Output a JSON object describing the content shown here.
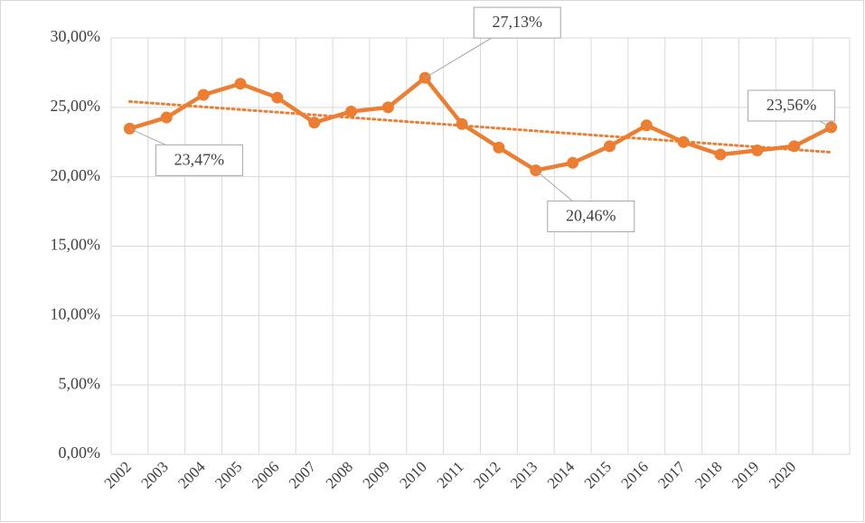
{
  "chart_data": {
    "type": "line",
    "categories": [
      "2002",
      "2003",
      "2004",
      "2005",
      "2006",
      "2007",
      "2008",
      "2009",
      "2010",
      "2011",
      "2012",
      "2013",
      "2014",
      "2015",
      "2016",
      "2017",
      "2018",
      "2019",
      "2020",
      null
    ],
    "series": [
      {
        "color": "#ed7d31",
        "values": [
          23.47,
          24.27,
          25.9,
          26.7,
          25.7,
          23.9,
          24.7,
          25.0,
          27.13,
          23.8,
          22.1,
          20.46,
          21.0,
          22.2,
          23.7,
          22.5,
          21.6,
          21.9,
          22.2,
          23.56
        ],
        "value_labels": [
          "23,47%",
          null,
          null,
          null,
          null,
          null,
          null,
          null,
          "27,13%",
          null,
          null,
          "20,46%",
          null,
          null,
          null,
          null,
          null,
          null,
          null,
          "23,56%"
        ]
      }
    ],
    "trendline": "linear",
    "ylim": [
      0,
      30
    ],
    "yticks": [
      {
        "value": 0,
        "label": "0,00%"
      },
      {
        "value": 5,
        "label": "5,00%"
      },
      {
        "value": 10,
        "label": "10,00%"
      },
      {
        "value": 15,
        "label": "15,00%"
      },
      {
        "value": 20,
        "label": "20,00%"
      },
      {
        "value": 25,
        "label": "25,00%"
      },
      {
        "value": 30,
        "label": "30,00%"
      }
    ],
    "grid": true
  }
}
